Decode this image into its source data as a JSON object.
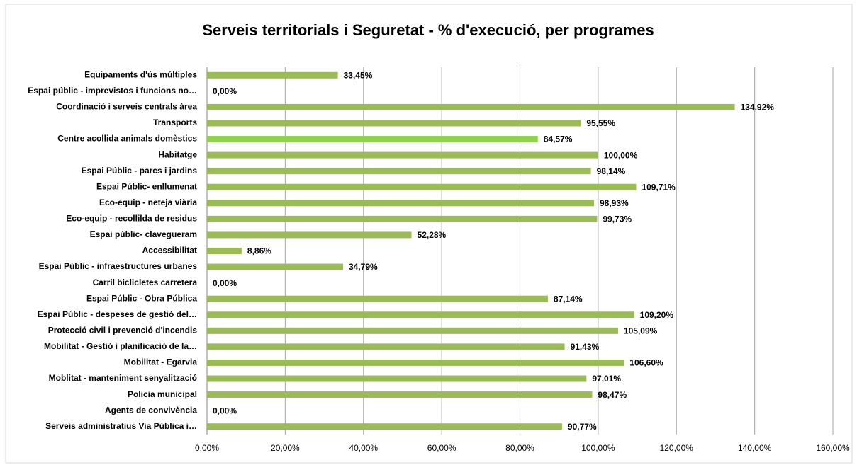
{
  "chart_data": {
    "type": "bar",
    "orientation": "horizontal",
    "title": "Serveis territorials i Seguretat -  % d'execució, per programes",
    "categories": [
      "Equipaments d'ús múltiples",
      "Espai públic - imprevistos i funcions no…",
      "Coordinació i serveis centrals àrea",
      "Transports",
      "Centre acollida animals domèstics",
      "Habitatge",
      "Espai Públic - parcs i jardins",
      "Espai Públic- enllumenat",
      "Eco-equip - neteja viària",
      "Eco-equip - recollilda de residus",
      "Espai públic- clavegueram",
      "Accessibilitat",
      "Espai Públic - infraestructures urbanes",
      "Carril biclicletes carretera",
      "Espai Públic - Obra Pública",
      "Espai Públic - despeses de gestió del…",
      "Protecció civil i prevenció d'incendis",
      "Mobilitat - Gestió i planificació de la…",
      "Mobilitat - Egarvia",
      "Moblitat - manteniment senyalització",
      "Policia municipal",
      "Agents de convivència",
      "Serveis administratius Via Pública i…"
    ],
    "values": [
      33.45,
      0,
      134.92,
      95.55,
      84.57,
      100,
      98.14,
      109.71,
      98.93,
      99.73,
      52.28,
      8.86,
      34.79,
      0,
      87.14,
      109.2,
      105.09,
      91.43,
      106.6,
      97.01,
      98.47,
      0,
      90.77
    ],
    "value_labels": [
      "33,45%",
      "0,00%",
      "134,92%",
      "95,55%",
      "84,57%",
      "100,00%",
      "98,14%",
      "109,71%",
      "98,93%",
      "99,73%",
      "52,28%",
      "8,86%",
      "34,79%",
      "0,00%",
      "87,14%",
      "109,20%",
      "105,09%",
      "91,43%",
      "106,60%",
      "97,01%",
      "98,47%",
      "0,00%",
      "90,77%"
    ],
    "colors": [
      "#9bbb59",
      "#9bbb59",
      "#9bbb59",
      "#9bbb59",
      "#92d050",
      "#9bbb59",
      "#9bbb59",
      "#9bbb59",
      "#9bbb59",
      "#9bbb59",
      "#9bbb59",
      "#9bbb59",
      "#9bbb59",
      "#9bbb59",
      "#9bbb59",
      "#9bbb59",
      "#9bbb59",
      "#9bbb59",
      "#9bbb59",
      "#9bbb59",
      "#9bbb59",
      "#9bbb59",
      "#9bbb59"
    ],
    "xlim": [
      0,
      160
    ],
    "xticks": [
      {
        "value": 0,
        "label": "0,00%"
      },
      {
        "value": 20,
        "label": "20,00%"
      },
      {
        "value": 40,
        "label": "40,00%"
      },
      {
        "value": 60,
        "label": "60,00%"
      },
      {
        "value": 80,
        "label": "80,00%"
      },
      {
        "value": 100,
        "label": "100,00%"
      },
      {
        "value": 120,
        "label": "120,00%"
      },
      {
        "value": 140,
        "label": "140,00%"
      },
      {
        "value": 160,
        "label": "160,00%"
      }
    ],
    "grid": true
  }
}
